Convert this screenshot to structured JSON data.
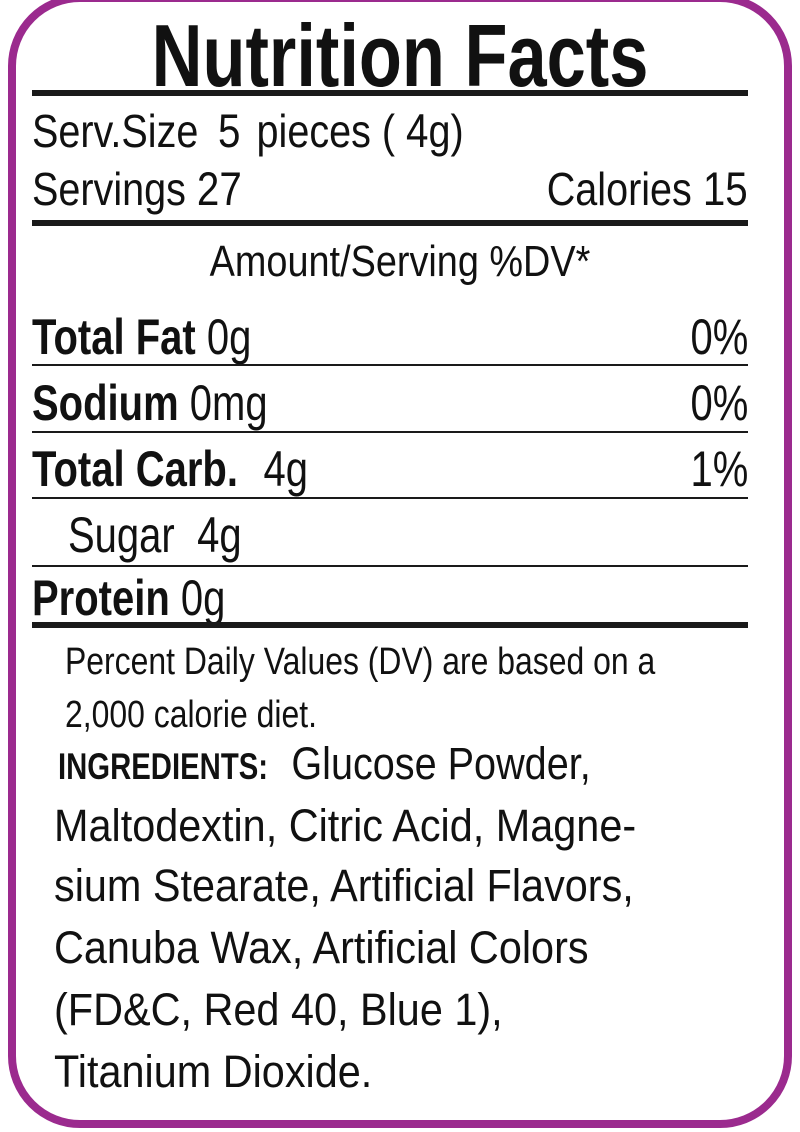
{
  "title": "Nutrition Facts",
  "border_color": "#9b2a8e",
  "serving": {
    "size_label": "Serv.Size",
    "size_count": "5",
    "size_unit": "pieces (",
    "size_grams": "4",
    "size_grams_unit": "g)",
    "servings_label": "Servings",
    "servings_value": "27",
    "calories_label": "Calories",
    "calories_value": "15"
  },
  "header": "Amount/Serving %DV*",
  "nutrients": [
    {
      "name": "Total Fat",
      "amount": "0g",
      "dv": "0%"
    },
    {
      "name": "Sodium",
      "amount": "0mg",
      "dv": "0%"
    },
    {
      "name": "Total Carb.",
      "amount": "4g",
      "dv": "1%"
    },
    {
      "name": "Sugar",
      "amount": "4g"
    },
    {
      "name": "Protein",
      "amount": "0g"
    }
  ],
  "footnote": [
    "Percent Daily Values (DV) are based on a",
    "2,000 calorie diet."
  ],
  "ingredients": {
    "label": "INGREDIENTS:",
    "lines": [
      "Glucose Powder,",
      "Maltodextin, Citric Acid, Magne-",
      "sium Stearate, Artificial Flavors,",
      "Canuba Wax, Artificial Colors",
      "(FD&C, Red 40, Blue 1),",
      "Titanium Dioxide."
    ]
  }
}
